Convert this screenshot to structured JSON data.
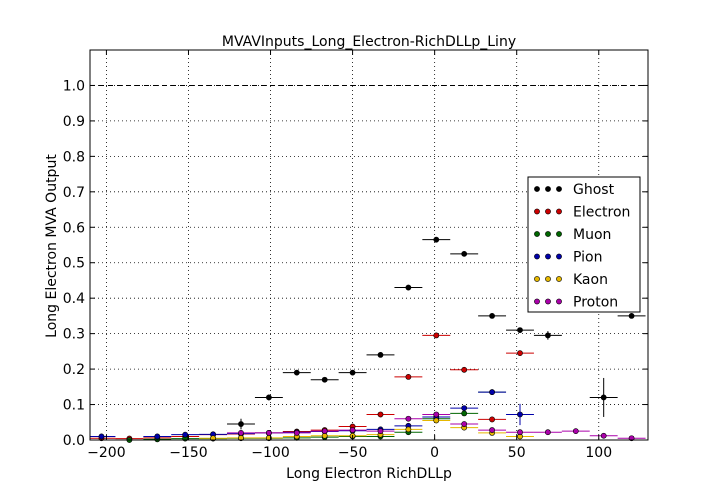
{
  "chart_data": {
    "type": "scatter",
    "title": "MVAVInputs_Long_Electron-RichDLLp_Liny",
    "xlabel": "Long Electron RichDLLp",
    "ylabel": "Long Electron MVA Output",
    "xlim": [
      -210,
      130
    ],
    "ylim": [
      0.0,
      1.1
    ],
    "xticks": [
      -200,
      -150,
      -100,
      -50,
      0,
      50,
      100
    ],
    "yticks": [
      0.0,
      0.1,
      0.2,
      0.3,
      0.4,
      0.5,
      0.6,
      0.7,
      0.8,
      0.9,
      1.0
    ],
    "reference_line_y": 1.0,
    "grid": true,
    "legend_position": "right",
    "bin_half_width": 8.5,
    "series": [
      {
        "name": "Ghost",
        "color": "#000000",
        "x": [
          -118,
          -101,
          -84,
          -67,
          -50,
          -33,
          -16,
          1,
          18,
          35,
          52,
          69,
          103,
          120
        ],
        "y": [
          0.045,
          0.12,
          0.19,
          0.17,
          0.19,
          0.24,
          0.43,
          0.565,
          0.525,
          0.35,
          0.31,
          0.295,
          0.12,
          0.35
        ],
        "yerr": [
          0.015,
          0.008,
          0.006,
          0.006,
          0.005,
          0.004,
          0.004,
          0.004,
          0.005,
          0.005,
          0.007,
          0.012,
          0.055,
          0.0
        ]
      },
      {
        "name": "Electron",
        "color": "#cc0000",
        "x": [
          -203,
          -186,
          -169,
          -152,
          -135,
          -118,
          -101,
          -84,
          -67,
          -50,
          -33,
          -16,
          1,
          18,
          35,
          52
        ],
        "y": [
          0.005,
          0.004,
          0.006,
          0.01,
          0.015,
          0.017,
          0.02,
          0.024,
          0.028,
          0.038,
          0.072,
          0.178,
          0.295,
          0.198,
          0.058,
          0.245
        ],
        "yerr": [
          0.002,
          0.002,
          0.002,
          0.002,
          0.002,
          0.002,
          0.002,
          0.002,
          0.002,
          0.002,
          0.003,
          0.004,
          0.005,
          0.005,
          0.005,
          0.007
        ]
      },
      {
        "name": "Muon",
        "color": "#006600",
        "x": [
          -186,
          -169,
          -152,
          -135,
          -118,
          -101,
          -84,
          -67,
          -50,
          -33,
          -16,
          1,
          18,
          35
        ],
        "y": [
          0.0,
          0.002,
          0.004,
          0.004,
          0.005,
          0.005,
          0.006,
          0.008,
          0.01,
          0.01,
          0.022,
          0.06,
          0.075,
          0.135
        ],
        "yerr": [
          0.001,
          0.001,
          0.001,
          0.001,
          0.001,
          0.001,
          0.001,
          0.001,
          0.001,
          0.002,
          0.003,
          0.004,
          0.005,
          0.006
        ]
      },
      {
        "name": "Pion",
        "color": "#0000aa",
        "x": [
          -203,
          -169,
          -152,
          -135,
          -118,
          -101,
          -84,
          -67,
          -50,
          -33,
          -16,
          1,
          18,
          35,
          52
        ],
        "y": [
          0.01,
          0.01,
          0.015,
          0.016,
          0.018,
          0.02,
          0.022,
          0.024,
          0.026,
          0.03,
          0.04,
          0.065,
          0.09,
          0.135,
          0.072
        ],
        "yerr": [
          0.003,
          0.002,
          0.002,
          0.002,
          0.002,
          0.002,
          0.002,
          0.002,
          0.002,
          0.002,
          0.003,
          0.004,
          0.005,
          0.008,
          0.03
        ]
      },
      {
        "name": "Kaon",
        "color": "#e6b800",
        "x": [
          -135,
          -118,
          -101,
          -84,
          -67,
          -50,
          -33,
          -16,
          1,
          18,
          35,
          52
        ],
        "y": [
          0.005,
          0.006,
          0.006,
          0.01,
          0.012,
          0.012,
          0.015,
          0.03,
          0.055,
          0.035,
          0.02,
          0.01
        ],
        "yerr": [
          0.001,
          0.001,
          0.001,
          0.001,
          0.001,
          0.001,
          0.002,
          0.002,
          0.003,
          0.003,
          0.002,
          0.002
        ]
      },
      {
        "name": "Proton",
        "color": "#aa00aa",
        "x": [
          -118,
          -101,
          -84,
          -67,
          -50,
          -33,
          -16,
          1,
          18,
          35,
          52,
          69,
          86,
          103,
          120
        ],
        "y": [
          0.02,
          0.02,
          0.02,
          0.025,
          0.028,
          0.025,
          0.06,
          0.072,
          0.045,
          0.028,
          0.022,
          0.022,
          0.025,
          0.012,
          0.005
        ],
        "yerr": [
          0.002,
          0.002,
          0.002,
          0.002,
          0.002,
          0.002,
          0.003,
          0.003,
          0.003,
          0.002,
          0.002,
          0.002,
          0.002,
          0.002,
          0.002
        ]
      }
    ]
  }
}
